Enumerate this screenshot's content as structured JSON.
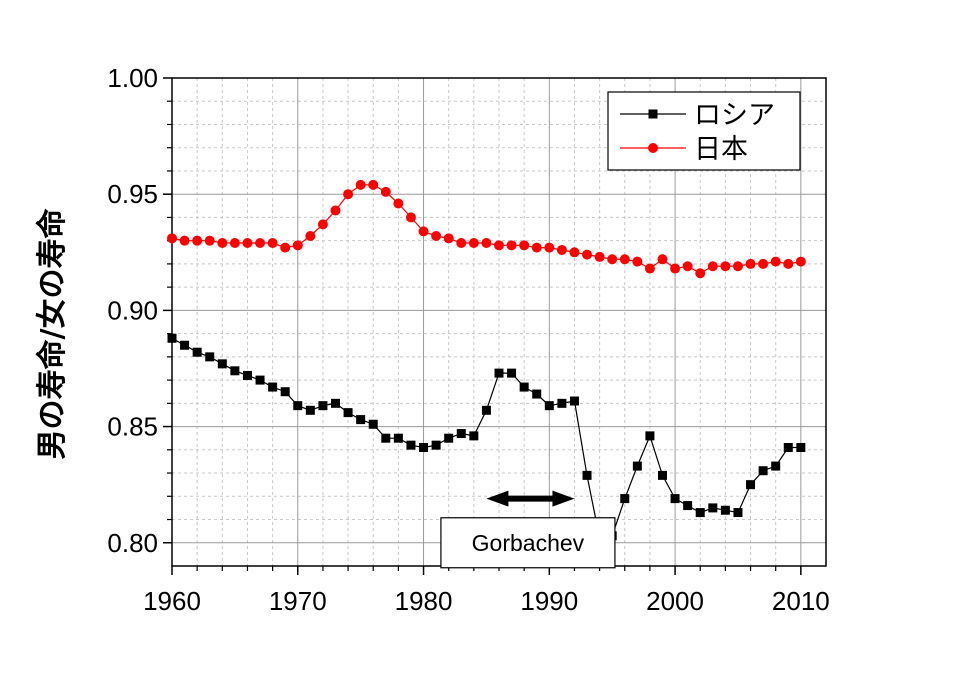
{
  "chart_data": {
    "type": "line",
    "title": "",
    "xlabel": "",
    "ylabel": "男の寿命/女の寿命",
    "xlim": [
      1960,
      2012
    ],
    "ylim": [
      0.79,
      1.0
    ],
    "xticks": [
      1960,
      1970,
      1980,
      1990,
      2000,
      2010
    ],
    "xtick_labels": [
      "1960",
      "1970",
      "1980",
      "1990",
      "2000",
      "2010"
    ],
    "yticks": [
      0.8,
      0.85,
      0.9,
      0.95,
      1.0
    ],
    "ytick_labels": [
      "0.80",
      "0.85",
      "0.90",
      "0.95",
      "1.00"
    ],
    "grid": true,
    "legend_position": "top-right",
    "series": [
      {
        "name": "ロシア",
        "color": "#000000",
        "marker": "square",
        "x": [
          1960,
          1961,
          1962,
          1963,
          1964,
          1965,
          1966,
          1967,
          1968,
          1969,
          1970,
          1971,
          1972,
          1973,
          1974,
          1975,
          1976,
          1977,
          1978,
          1979,
          1980,
          1981,
          1982,
          1983,
          1984,
          1985,
          1986,
          1987,
          1988,
          1989,
          1990,
          1991,
          1992,
          1993,
          1994,
          1995,
          1996,
          1997,
          1998,
          1999,
          2000,
          2001,
          2002,
          2003,
          2004,
          2005,
          2006,
          2007,
          2008,
          2009,
          2010
        ],
        "y": [
          0.888,
          0.885,
          0.882,
          0.88,
          0.877,
          0.874,
          0.872,
          0.87,
          0.867,
          0.865,
          0.859,
          0.857,
          0.859,
          0.86,
          0.856,
          0.853,
          0.851,
          0.845,
          0.845,
          0.842,
          0.841,
          0.842,
          0.845,
          0.847,
          0.846,
          0.857,
          0.873,
          0.873,
          0.867,
          0.864,
          0.859,
          0.86,
          0.861,
          0.829,
          0.802,
          0.803,
          0.819,
          0.833,
          0.846,
          0.829,
          0.819,
          0.816,
          0.813,
          0.815,
          0.814,
          0.813,
          0.825,
          0.831,
          0.833,
          0.841,
          0.841
        ]
      },
      {
        "name": "日本",
        "color": "#ff0000",
        "marker": "circle",
        "x": [
          1960,
          1961,
          1962,
          1963,
          1964,
          1965,
          1966,
          1967,
          1968,
          1969,
          1970,
          1971,
          1972,
          1973,
          1974,
          1975,
          1976,
          1977,
          1978,
          1979,
          1980,
          1981,
          1982,
          1983,
          1984,
          1985,
          1986,
          1987,
          1988,
          1989,
          1990,
          1991,
          1992,
          1993,
          1994,
          1995,
          1996,
          1997,
          1998,
          1999,
          2000,
          2001,
          2002,
          2003,
          2004,
          2005,
          2006,
          2007,
          2008,
          2009,
          2010
        ],
        "y": [
          0.931,
          0.93,
          0.93,
          0.93,
          0.929,
          0.929,
          0.929,
          0.929,
          0.929,
          0.927,
          0.928,
          0.932,
          0.937,
          0.943,
          0.95,
          0.954,
          0.954,
          0.951,
          0.946,
          0.94,
          0.934,
          0.932,
          0.931,
          0.929,
          0.929,
          0.929,
          0.928,
          0.928,
          0.928,
          0.927,
          0.927,
          0.926,
          0.925,
          0.924,
          0.923,
          0.922,
          0.922,
          0.921,
          0.918,
          0.922,
          0.918,
          0.919,
          0.916,
          0.919,
          0.919,
          0.919,
          0.92,
          0.92,
          0.921,
          0.92,
          0.921
        ]
      }
    ],
    "annotations": [
      {
        "type": "double-arrow",
        "x_start": 1985,
        "x_end": 1992,
        "y": 0.819
      },
      {
        "type": "text-box",
        "text": "Gorbachev",
        "x": 1988.3,
        "y": 0.8
      }
    ]
  }
}
